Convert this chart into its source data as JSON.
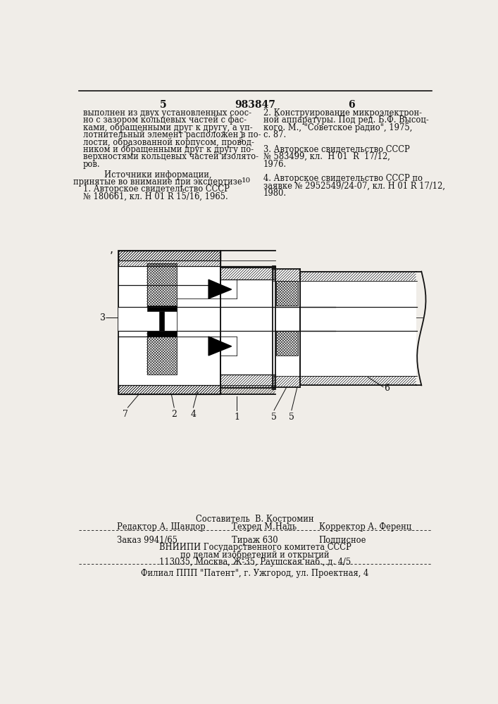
{
  "bg_color": "#f0ede8",
  "page_number_left": "5",
  "page_number_center": "983847",
  "page_number_right": "6",
  "left_col_text": [
    "выполнен из двух установленных соос-",
    "но с зазором кольцевых частей с фас-",
    "ками, обращенными друг к другу, а уп-",
    "лотнительный элемент расположен в по-",
    "лости, образованной корпусом, провод-",
    "ником и обращенными друг к другу по-",
    "верхностями кольцевых частей изолято-",
    "ров."
  ],
  "left_col_sources_centered": [
    "Источники информации,",
    "принятые во внимание при экспертизе"
  ],
  "left_col_sources_left": [
    "1. Авторское свидетельство СССР",
    "№ 180661, кл. Н 01 R 15/16, 1965."
  ],
  "num_5_ref": "5",
  "num_10_ref": "10",
  "right_col_text": [
    "2. Конструирование микроэлектрон-",
    "ной аппаратуры. Под ред. Б.Ф. Высоц-",
    "кого. М., \"Советское радио\", 1975,",
    "с. 87.",
    "",
    "3. Авторское свидетельство СССР",
    "№ 583499, кл.  Н 01  R  17/12,",
    "1976.",
    "",
    "4. Авторское свидетельство СССР по",
    "заявке № 2952549/24-07, кл. Н 01 R 17/12,",
    "1980."
  ],
  "footer_sestavitel": "Составитель  В. Костромин",
  "footer_line1_left": "Редактор А. Шандор",
  "footer_line1_center": "Техред М.Надь",
  "footer_line1_right": "Корректор А. Ференц",
  "footer_line2_left": "Заказ 9941/65",
  "footer_line2_center": "Тираж 630",
  "footer_line2_right": "Подписное",
  "footer_line3": "ВНИИПИ Государственного комитета СССР",
  "footer_line4": "по делам изобретений и открытий",
  "footer_line5": "113035, Москва, Ж-35, Раушская наб., д. 4/5",
  "footer_line6": "Филиал ППП \"Патент\", г. Ужгород, ул. Проектная, 4",
  "text_color": "#111111",
  "line_color": "#111111"
}
